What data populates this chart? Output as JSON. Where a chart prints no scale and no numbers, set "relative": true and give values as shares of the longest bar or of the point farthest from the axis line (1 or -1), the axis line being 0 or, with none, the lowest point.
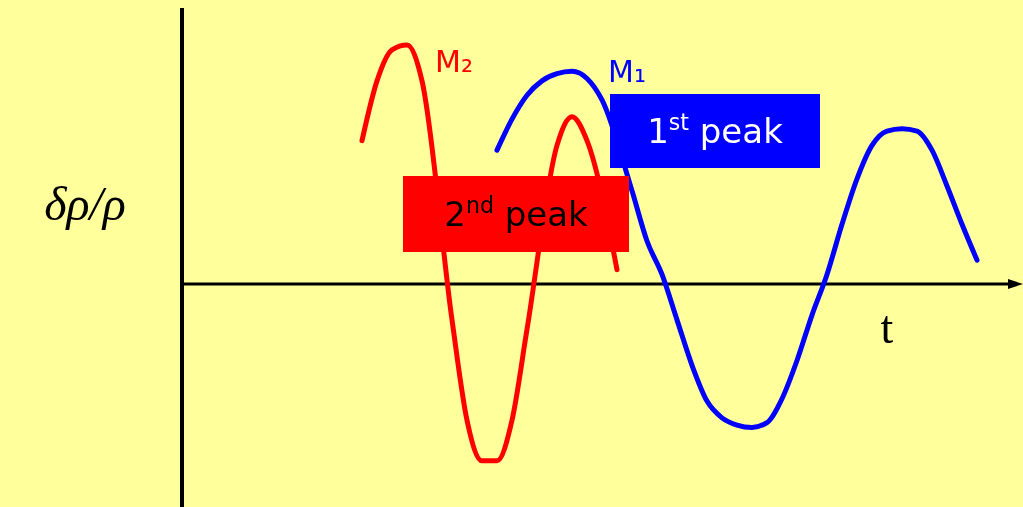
{
  "chart_data": {
    "type": "line",
    "relative": true,
    "xlabel": "t",
    "ylabel": "δρ/ρ",
    "categories": [
      null,
      null,
      null,
      null,
      null,
      null,
      null,
      null,
      null,
      null,
      null,
      null,
      null,
      null,
      null,
      null,
      null,
      null,
      null,
      null,
      null,
      null,
      null,
      null,
      null,
      null,
      null,
      null,
      null,
      null,
      null,
      null,
      null,
      null,
      null,
      null,
      null,
      null,
      null,
      null,
      null,
      null,
      null,
      null,
      null,
      null,
      null,
      null,
      null,
      null,
      null,
      null,
      null,
      null,
      null,
      null
    ],
    "series": [
      {
        "name": "M₂",
        "color": "#ff0000",
        "values": [
          null,
          null,
          null,
          null,
          null,
          null,
          null,
          null,
          null,
          null,
          null,
          null,
          0.6,
          0.85,
          0.98,
          1.0,
          0.85,
          null,
          -0.15,
          -0.57,
          -0.74,
          -0.74,
          -0.57,
          -0.19,
          null,
          0.58,
          0.7,
          0.6,
          null,
          0.06,
          null,
          null,
          null,
          null,
          null,
          null,
          null,
          null,
          null,
          null,
          null,
          null,
          null,
          null,
          null,
          null,
          null,
          null,
          null,
          null,
          null,
          null,
          null,
          null,
          null,
          null
        ]
      },
      {
        "name": "M₁",
        "color": "#0000ff",
        "values": [
          null,
          null,
          null,
          null,
          null,
          null,
          null,
          null,
          null,
          null,
          null,
          null,
          null,
          null,
          null,
          null,
          null,
          null,
          null,
          null,
          null,
          0.56,
          0.69,
          0.79,
          0.85,
          0.88,
          0.89,
          0.86,
          0.77,
          null,
          0.39,
          0.18,
          0.04,
          -0.15,
          -0.34,
          -0.49,
          -0.56,
          -0.59,
          -0.6,
          -0.58,
          -0.48,
          -0.32,
          -0.13,
          0.04,
          0.25,
          0.44,
          0.58,
          0.64,
          0.65,
          0.64,
          0.56,
          0.41,
          0.25,
          0.1,
          null,
          null
        ]
      }
    ],
    "annotations": [
      "2$^{nd}$ peak",
      "1$^{st}$ peak"
    ]
  }
}
